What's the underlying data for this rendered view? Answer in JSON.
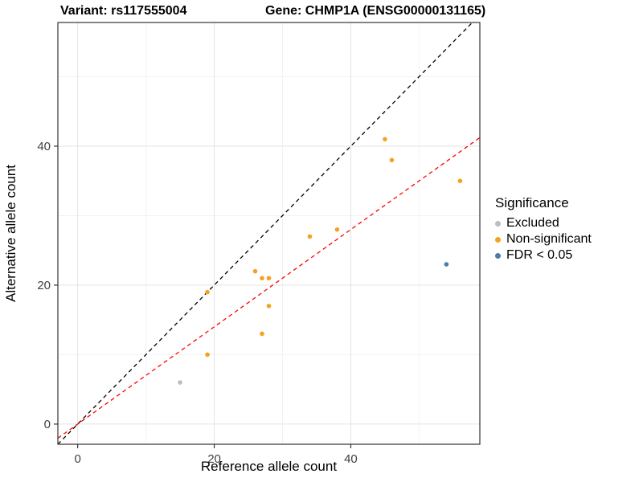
{
  "titles": {
    "variant": "Variant: rs117555004",
    "gene": "Gene: CHMP1A (ENSG00000131165)"
  },
  "legend": {
    "title": "Significance"
  },
  "chart_data": {
    "type": "scatter",
    "xlabel": "Reference allele count",
    "ylabel": "Alternative allele count",
    "xlim": [
      -2.9,
      58.9
    ],
    "ylim": [
      -2.9,
      57.8
    ],
    "x_ticks": [
      0,
      20,
      40
    ],
    "y_ticks": [
      0,
      20,
      40
    ],
    "minor_ticks": [
      10,
      30,
      50
    ],
    "grid": true,
    "legend_position": "right",
    "colors": {
      "panel_background": "#ffffff",
      "major_grid": "#e3e3e3",
      "minor_grid": "#f2f2f2",
      "panel_border": "#333333",
      "tick_label": "#404040",
      "axis_title": "#000000"
    },
    "series": [
      {
        "name": "Excluded",
        "color": "#bdbdbd",
        "points": [
          [
            15,
            6
          ]
        ]
      },
      {
        "name": "Non-significant",
        "color": "#f5a223",
        "points": [
          [
            19,
            10
          ],
          [
            19,
            19
          ],
          [
            26,
            22
          ],
          [
            27,
            21
          ],
          [
            28,
            21
          ],
          [
            28,
            17
          ],
          [
            27,
            13
          ],
          [
            34,
            27
          ],
          [
            38,
            28
          ],
          [
            45,
            41
          ],
          [
            46,
            38
          ],
          [
            56,
            35
          ]
        ]
      },
      {
        "name": "FDR < 0.05",
        "color": "#4c7ca8",
        "points": [
          [
            54,
            23
          ]
        ]
      }
    ],
    "lines": [
      {
        "name": "identity-line",
        "slope": 1,
        "intercept": 0,
        "color": "#000000",
        "dash": "5,4"
      },
      {
        "name": "expected-ratio-line",
        "slope": 0.7,
        "intercept": 0,
        "color": "#ff0000",
        "dash": "5,4"
      }
    ]
  }
}
